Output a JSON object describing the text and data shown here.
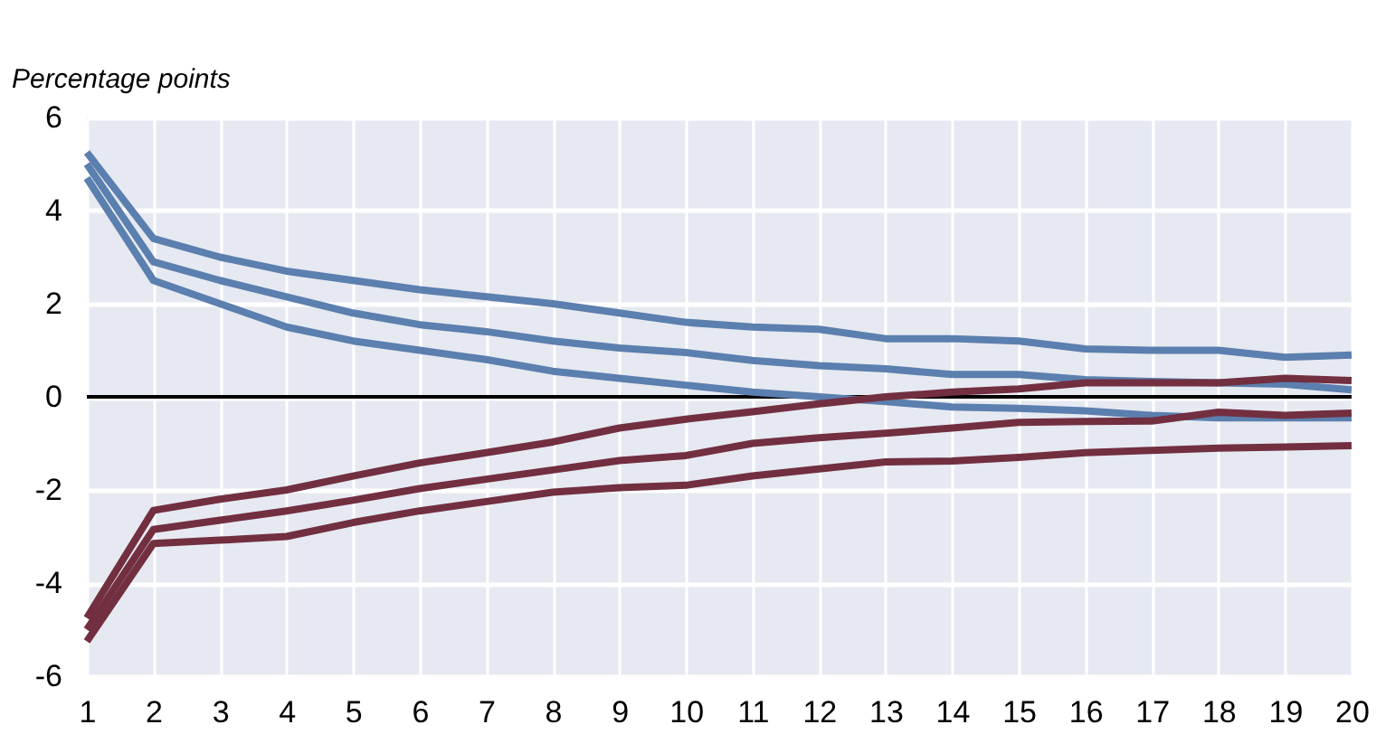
{
  "chart_data": {
    "type": "line",
    "ylabel": "Percentage points",
    "x": [
      1,
      2,
      3,
      4,
      5,
      6,
      7,
      8,
      9,
      10,
      11,
      12,
      13,
      14,
      15,
      16,
      17,
      18,
      19,
      20
    ],
    "series": [
      {
        "color": "#5b7fae",
        "values": [
          5.25,
          3.4,
          3.0,
          2.7,
          2.5,
          2.3,
          2.15,
          2.0,
          1.8,
          1.6,
          1.5,
          1.45,
          1.25,
          1.25,
          1.2,
          1.03,
          1.0,
          1.0,
          0.85,
          0.9
        ]
      },
      {
        "color": "#5b7fae",
        "values": [
          5.0,
          2.9,
          2.5,
          2.15,
          1.8,
          1.55,
          1.4,
          1.2,
          1.05,
          0.95,
          0.78,
          0.67,
          0.6,
          0.48,
          0.48,
          0.37,
          0.33,
          0.3,
          0.27,
          0.15
        ]
      },
      {
        "color": "#5b7fae",
        "values": [
          4.7,
          2.5,
          2.0,
          1.5,
          1.2,
          1.0,
          0.8,
          0.55,
          0.4,
          0.25,
          0.1,
          0.0,
          -0.1,
          -0.22,
          -0.25,
          -0.3,
          -0.4,
          -0.45,
          -0.45,
          -0.45
        ]
      },
      {
        "color": "#722f40",
        "values": [
          -4.75,
          -2.44,
          -2.2,
          -2.0,
          -1.7,
          -1.42,
          -1.2,
          -0.97,
          -0.67,
          -0.48,
          -0.32,
          -0.15,
          0.0,
          0.1,
          0.17,
          0.3,
          0.3,
          0.3,
          0.4,
          0.35
        ]
      },
      {
        "color": "#722f40",
        "values": [
          -5.0,
          -2.85,
          -2.65,
          -2.45,
          -2.22,
          -1.97,
          -1.77,
          -1.57,
          -1.37,
          -1.26,
          -1.0,
          -0.88,
          -0.78,
          -0.67,
          -0.55,
          -0.53,
          -0.52,
          -0.33,
          -0.4,
          -0.35
        ]
      },
      {
        "color": "#722f40",
        "values": [
          -5.25,
          -3.15,
          -3.08,
          -3.0,
          -2.7,
          -2.45,
          -2.25,
          -2.05,
          -1.95,
          -1.9,
          -1.7,
          -1.55,
          -1.4,
          -1.38,
          -1.3,
          -1.2,
          -1.15,
          -1.1,
          -1.08,
          -1.05
        ]
      }
    ],
    "xlim": [
      1,
      20
    ],
    "xticks": [
      1,
      2,
      3,
      4,
      5,
      6,
      7,
      8,
      9,
      10,
      11,
      12,
      13,
      14,
      15,
      16,
      17,
      18,
      19,
      20
    ],
    "ylim": [
      -6,
      6
    ],
    "yticks": [
      -6,
      -4,
      -2,
      0,
      2,
      4,
      6
    ],
    "ref_lines": [
      {
        "axis": "y",
        "value": 0,
        "color": "#000000"
      }
    ],
    "grid": true,
    "marker": "none",
    "line_style": "solid"
  }
}
